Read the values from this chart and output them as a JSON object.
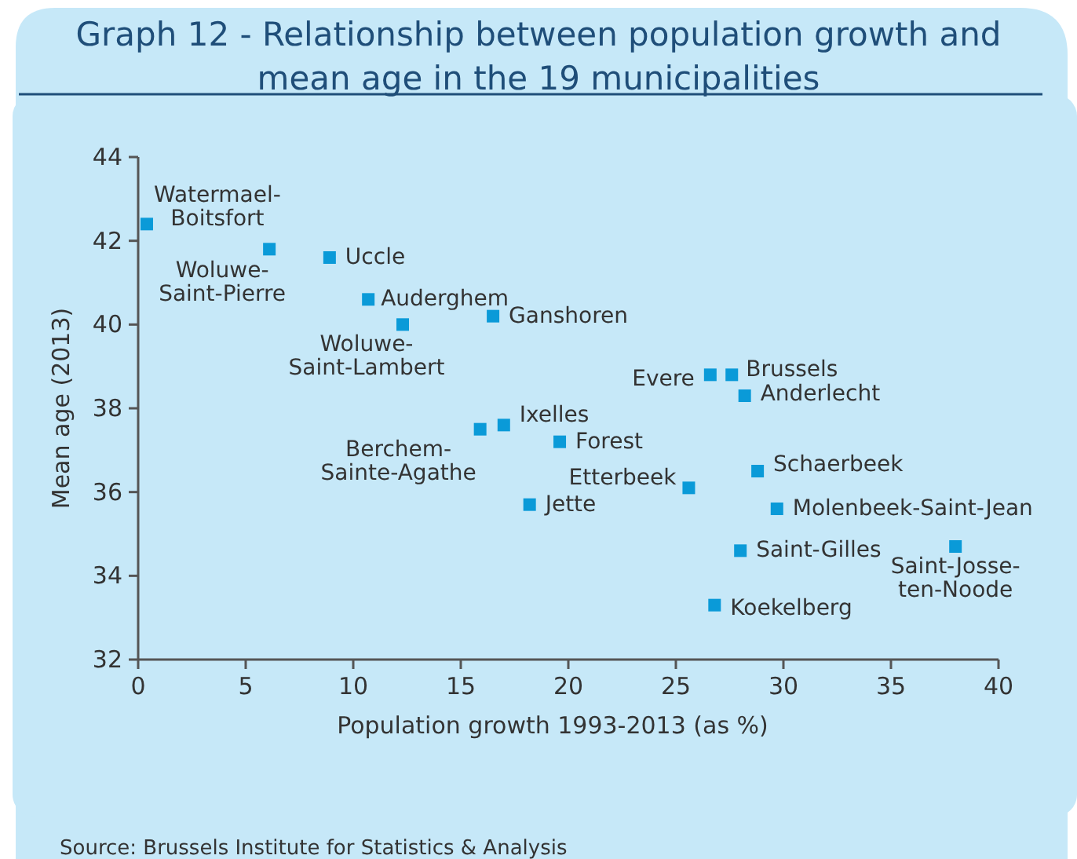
{
  "chart_data": {
    "type": "scatter",
    "title": "Graph 12 - Relationship between population growth and\nmean age in the 19 municipalities",
    "xlabel": "Population growth 1993-2013 (as %)",
    "ylabel": "Mean age (2013)",
    "x": [
      0.4,
      6.1,
      8.9,
      10.7,
      12.3,
      16.5,
      26.6,
      27.6,
      28.2,
      15.9,
      17.0,
      19.6,
      25.6,
      28.8,
      18.2,
      29.7,
      28.0,
      38.0,
      26.8
    ],
    "series": [
      {
        "color": "#0a9ad8",
        "values": [
          42.4,
          41.8,
          41.6,
          40.6,
          40.0,
          40.2,
          38.8,
          38.8,
          38.3,
          37.5,
          37.6,
          37.2,
          36.1,
          36.5,
          35.7,
          35.6,
          34.6,
          34.7,
          33.3
        ]
      }
    ],
    "xlim": [
      0,
      40
    ],
    "xticks": [
      0,
      5,
      10,
      15,
      20,
      25,
      30,
      35,
      40
    ],
    "ylim": [
      32,
      44
    ],
    "yticks": [
      32,
      34,
      36,
      38,
      40,
      42,
      44
    ],
    "marker": "square",
    "annotations": [
      {
        "text": "Watermael-\nBoitsfort",
        "x": 0.4,
        "y": 42.4
      },
      {
        "text": "Woluwe-\nSaint-Pierre",
        "x": 6.1,
        "y": 41.8
      },
      {
        "text": "Uccle",
        "x": 8.9,
        "y": 41.6
      },
      {
        "text": "Auderghem",
        "x": 10.7,
        "y": 40.6
      },
      {
        "text": "Woluwe-\nSaint-Lambert",
        "x": 12.3,
        "y": 40.0
      },
      {
        "text": "Ganshoren",
        "x": 16.5,
        "y": 40.2
      },
      {
        "text": "Evere",
        "x": 26.6,
        "y": 38.8
      },
      {
        "text": "Brussels",
        "x": 27.6,
        "y": 38.8
      },
      {
        "text": "Anderlecht",
        "x": 28.2,
        "y": 38.3
      },
      {
        "text": "Berchem-\nSainte-Agathe",
        "x": 15.9,
        "y": 37.5
      },
      {
        "text": "Ixelles",
        "x": 17.0,
        "y": 37.6
      },
      {
        "text": "Forest",
        "x": 19.6,
        "y": 37.2
      },
      {
        "text": "Etterbeek",
        "x": 25.6,
        "y": 36.1
      },
      {
        "text": "Schaerbeek",
        "x": 28.8,
        "y": 36.5
      },
      {
        "text": "Jette",
        "x": 18.2,
        "y": 35.7
      },
      {
        "text": "Molenbeek-Saint-Jean",
        "x": 29.7,
        "y": 35.6
      },
      {
        "text": "Saint-Gilles",
        "x": 28.0,
        "y": 34.6
      },
      {
        "text": "Saint-Josse-\nten-Noode",
        "x": 38.0,
        "y": 34.7
      },
      {
        "text": "Koekelberg",
        "x": 26.8,
        "y": 33.3
      },
      "Source: Brussels Institute for Statistics & Analysis"
    ]
  }
}
